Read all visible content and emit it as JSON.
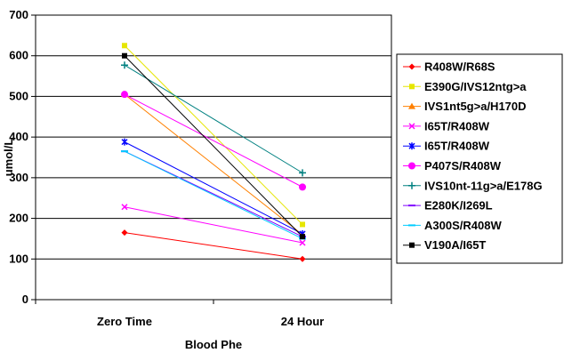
{
  "chart_data": {
    "type": "line",
    "title": "",
    "xlabel": "Blood Phe",
    "ylabel": "umol/L",
    "categories": [
      "Zero Time",
      "24 Hour"
    ],
    "ylim": [
      0,
      700
    ],
    "yticks": [
      0,
      100,
      200,
      300,
      400,
      500,
      600,
      700
    ],
    "grid": true,
    "legend_position": "right",
    "series": [
      {
        "name": "R408W/R68S",
        "color": "#ff0000",
        "marker": "diamond",
        "values": [
          165,
          100
        ]
      },
      {
        "name": "E390G/IVS12ntg>a",
        "color": "#e6e600",
        "marker": "square",
        "values": [
          625,
          185
        ]
      },
      {
        "name": "IVS1nt5g>a/H170D",
        "color": "#ff8000",
        "marker": "triangle",
        "values": [
          505,
          160
        ]
      },
      {
        "name": "I65T/R408W",
        "color": "#ff00ff",
        "marker": "x",
        "values": [
          228,
          140
        ]
      },
      {
        "name": "I65T/R408W",
        "color": "#0000ff",
        "marker": "asterisk",
        "values": [
          388,
          162
        ]
      },
      {
        "name": "P407S/R408W",
        "color": "#ff00ff",
        "marker": "circle",
        "values": [
          505,
          277
        ]
      },
      {
        "name": "IVS10nt-11g>a/E178G",
        "color": "#008080",
        "marker": "plus",
        "values": [
          577,
          312
        ]
      },
      {
        "name": "E280K/I269L",
        "color": "#8000ff",
        "marker": "dash",
        "values": [
          365,
          155
        ]
      },
      {
        "name": "A300S/R408W",
        "color": "#00ccff",
        "marker": "dash",
        "values": [
          365,
          150
        ]
      },
      {
        "name": "V190A/I65T",
        "color": "#000000",
        "marker": "square",
        "values": [
          600,
          155
        ]
      }
    ]
  }
}
